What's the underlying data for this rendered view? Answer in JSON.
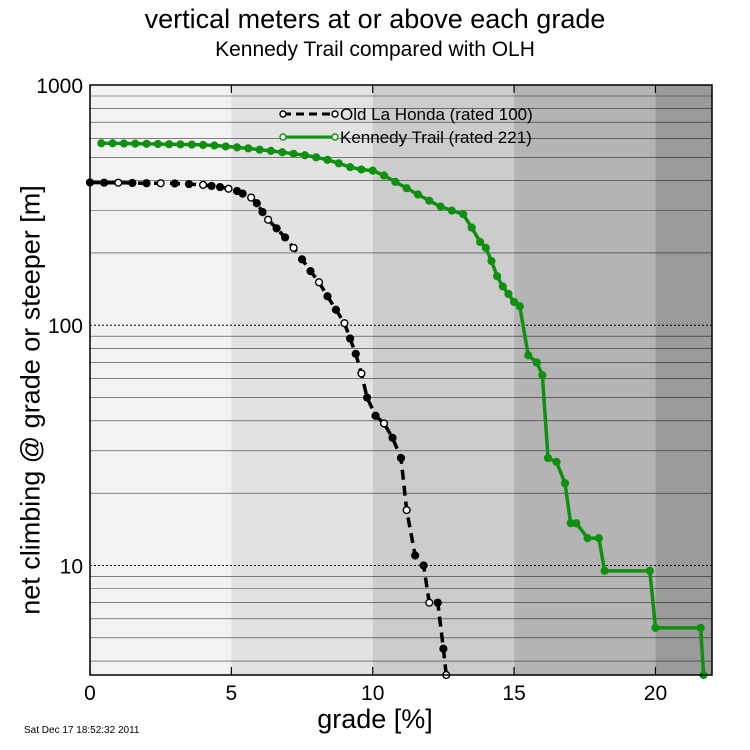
{
  "title": "vertical meters at or above each grade",
  "subtitle": "Kennedy Trail compared with OLH",
  "timestamp": "Sat Dec 17 18:52:32 2011",
  "colors": {
    "olh": "#000000",
    "kennedy": "#109010"
  },
  "chart_data": {
    "type": "line",
    "title": "vertical meters at or above each grade",
    "subtitle": "Kennedy Trail compared with OLH",
    "xlabel": "grade [%]",
    "ylabel": "net climbing @ grade or steeper [m]",
    "xlim": [
      0,
      22
    ],
    "ylim": [
      3.5,
      1000
    ],
    "yscale": "log",
    "xticks": [
      "0",
      "5",
      "10",
      "15",
      "20"
    ],
    "yticks": [
      "10",
      "100",
      "1000"
    ],
    "grid": true,
    "legend": "top-center",
    "shading_bands": [
      {
        "from": 0,
        "to": 5,
        "shade": "#f2f2f2"
      },
      {
        "from": 5,
        "to": 10,
        "shade": "#e2e2e2"
      },
      {
        "from": 10,
        "to": 15,
        "shade": "#cccccc"
      },
      {
        "from": 15,
        "to": 20,
        "shade": "#b4b4b4"
      },
      {
        "from": 20,
        "to": 22,
        "shade": "#9b9b9b"
      }
    ],
    "series": [
      {
        "name": "Old La Honda (rated 100)",
        "style": "dashed",
        "points": [
          [
            0,
            393
          ],
          [
            0.5,
            392
          ],
          [
            1,
            392
          ],
          [
            1.5,
            391
          ],
          [
            2,
            390
          ],
          [
            2.5,
            390
          ],
          [
            3,
            389
          ],
          [
            3.5,
            387
          ],
          [
            4,
            384
          ],
          [
            4.3,
            380
          ],
          [
            4.6,
            376
          ],
          [
            4.9,
            370
          ],
          [
            5.2,
            362
          ],
          [
            5.4,
            353
          ],
          [
            5.7,
            340
          ],
          [
            5.9,
            322
          ],
          [
            6.1,
            296
          ],
          [
            6.3,
            275
          ],
          [
            6.6,
            253
          ],
          [
            6.9,
            232
          ],
          [
            7.2,
            210
          ],
          [
            7.5,
            188
          ],
          [
            7.8,
            168
          ],
          [
            8.1,
            151
          ],
          [
            8.4,
            132
          ],
          [
            8.7,
            116
          ],
          [
            9.0,
            102
          ],
          [
            9.2,
            88
          ],
          [
            9.4,
            76
          ],
          [
            9.6,
            63
          ],
          [
            9.8,
            50
          ],
          [
            10.1,
            42
          ],
          [
            10.4,
            39
          ],
          [
            10.7,
            34
          ],
          [
            11.0,
            28
          ],
          [
            11.2,
            17
          ],
          [
            11.5,
            11
          ],
          [
            11.8,
            10
          ],
          [
            12.0,
            7
          ],
          [
            12.3,
            7
          ],
          [
            12.5,
            4.5
          ],
          [
            12.6,
            3.5
          ]
        ]
      },
      {
        "name": "Kennedy Trail (rated 221)",
        "style": "solid",
        "points": [
          [
            0.4,
            572
          ],
          [
            0.8,
            572
          ],
          [
            1.2,
            571
          ],
          [
            1.6,
            570
          ],
          [
            2.0,
            569
          ],
          [
            2.4,
            568
          ],
          [
            2.8,
            567
          ],
          [
            3.2,
            566
          ],
          [
            3.6,
            565
          ],
          [
            4.0,
            563
          ],
          [
            4.4,
            560
          ],
          [
            4.8,
            555
          ],
          [
            5.2,
            550
          ],
          [
            5.6,
            545
          ],
          [
            6.0,
            538
          ],
          [
            6.4,
            532
          ],
          [
            6.8,
            525
          ],
          [
            7.2,
            517
          ],
          [
            7.6,
            510
          ],
          [
            8.0,
            500
          ],
          [
            8.4,
            488
          ],
          [
            8.8,
            472
          ],
          [
            9.2,
            455
          ],
          [
            9.6,
            445
          ],
          [
            10.0,
            440
          ],
          [
            10.4,
            420
          ],
          [
            10.8,
            395
          ],
          [
            11.2,
            372
          ],
          [
            11.6,
            350
          ],
          [
            12.0,
            330
          ],
          [
            12.4,
            312
          ],
          [
            12.8,
            300
          ],
          [
            13.2,
            290
          ],
          [
            13.5,
            255
          ],
          [
            13.8,
            222
          ],
          [
            14.0,
            210
          ],
          [
            14.2,
            185
          ],
          [
            14.4,
            160
          ],
          [
            14.6,
            145
          ],
          [
            14.8,
            135
          ],
          [
            15.0,
            125
          ],
          [
            15.2,
            120
          ],
          [
            15.5,
            75
          ],
          [
            15.8,
            70
          ],
          [
            16.0,
            62
          ],
          [
            16.2,
            28
          ],
          [
            16.5,
            27
          ],
          [
            16.8,
            22
          ],
          [
            17.0,
            15
          ],
          [
            17.2,
            15
          ],
          [
            17.6,
            13
          ],
          [
            18.0,
            13
          ],
          [
            18.2,
            9.5
          ],
          [
            19.8,
            9.5
          ],
          [
            20.0,
            5.5
          ],
          [
            21.6,
            5.5
          ],
          [
            21.7,
            3.5
          ]
        ]
      }
    ]
  }
}
